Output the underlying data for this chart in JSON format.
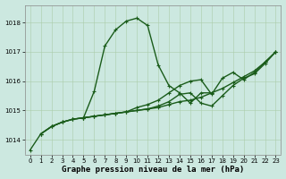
{
  "title": "Graphe pression niveau de la mer (hPa)",
  "background_color": "#cce8e0",
  "line_color": "#1a5c1a",
  "grid_color": "#aaccaa",
  "xlim": [
    -0.5,
    23.5
  ],
  "ylim": [
    1013.5,
    1018.6
  ],
  "yticks": [
    1014,
    1015,
    1016,
    1017,
    1018
  ],
  "xticks": [
    0,
    1,
    2,
    3,
    4,
    5,
    6,
    7,
    8,
    9,
    10,
    11,
    12,
    13,
    14,
    15,
    16,
    17,
    18,
    19,
    20,
    21,
    22,
    23
  ],
  "series": [
    {
      "x": [
        0,
        1,
        2,
        3,
        4,
        5,
        6,
        7,
        8,
        9,
        10,
        11,
        12,
        13,
        14,
        15,
        16,
        17,
        18,
        19,
        20,
        21,
        22
      ],
      "y": [
        1013.65,
        1014.2,
        1014.45,
        1014.6,
        1014.7,
        1014.75,
        1015.65,
        1017.2,
        1017.75,
        1018.05,
        1018.15,
        1017.9,
        1016.55,
        1015.85,
        1015.6,
        1015.25,
        1015.6,
        1015.6,
        null,
        null,
        null,
        null,
        null
      ],
      "marker": true,
      "linewidth": 1.0
    },
    {
      "x": [
        1,
        2,
        3,
        4,
        5,
        6,
        7,
        8,
        9,
        10,
        11,
        12,
        13,
        14,
        15,
        16,
        17,
        18,
        19,
        20,
        21,
        22,
        23
      ],
      "y": [
        1014.2,
        1014.45,
        1014.6,
        1014.7,
        1014.75,
        1014.8,
        1014.85,
        1014.9,
        1014.95,
        1015.0,
        1015.05,
        1015.1,
        1015.2,
        1015.3,
        1015.35,
        1015.45,
        1015.6,
        1015.75,
        1015.95,
        1016.15,
        1016.35,
        1016.65,
        1017.0
      ],
      "marker": true,
      "linewidth": 1.0
    },
    {
      "x": [
        1,
        2,
        3,
        4,
        5,
        6,
        7,
        8,
        9,
        10,
        11,
        12,
        13,
        14,
        15,
        16,
        17,
        18,
        19,
        20,
        21,
        22,
        23
      ],
      "y": [
        1014.2,
        1014.45,
        1014.6,
        1014.7,
        1014.75,
        1014.8,
        1014.85,
        1014.9,
        1014.95,
        1015.0,
        1015.05,
        1015.15,
        1015.3,
        1015.55,
        1015.6,
        1015.25,
        1015.15,
        1015.5,
        1015.85,
        1016.1,
        1016.25,
        1016.6,
        1017.0
      ],
      "marker": true,
      "linewidth": 1.0
    },
    {
      "x": [
        5,
        6,
        7,
        8,
        9,
        10,
        11,
        12,
        13,
        14,
        15,
        16,
        17,
        18,
        19,
        20,
        21,
        22,
        23
      ],
      "y": [
        1014.75,
        1014.8,
        1014.85,
        1014.9,
        1014.95,
        1015.1,
        1015.2,
        1015.35,
        1015.6,
        1015.85,
        1016.0,
        1016.05,
        1015.55,
        1016.1,
        1016.3,
        1016.05,
        1016.3,
        1016.65,
        1017.0
      ],
      "marker": true,
      "linewidth": 1.0
    }
  ],
  "title_fontsize": 6.5,
  "tick_fontsize": 5.0,
  "ylabel_fontsize": 6.5
}
